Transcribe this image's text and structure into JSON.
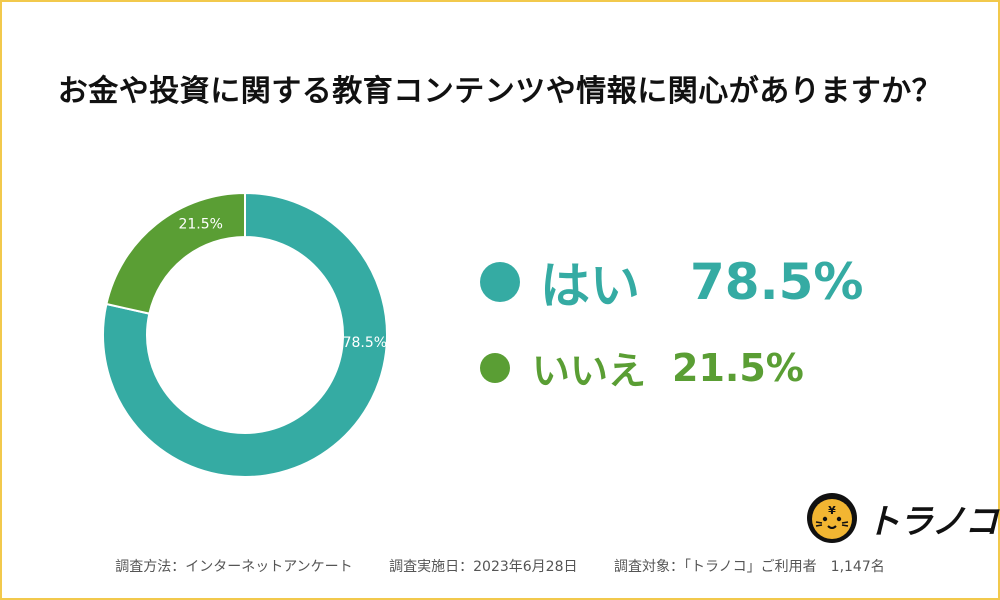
{
  "title": "お金や投資に関する教育コンテンツや情報に関心がありますか？",
  "chart_data": {
    "type": "pie",
    "title": "お金や投資に関する教育コンテンツや情報に関心がありますか？",
    "categories": [
      "はい",
      "いいえ"
    ],
    "values": [
      78.5,
      21.5
    ],
    "value_labels": [
      "78.5%",
      "21.5%"
    ],
    "colors": [
      "#35aba3",
      "#5a9e34"
    ],
    "donut": true,
    "legend_placement": "right"
  },
  "legend": [
    {
      "label": "はい",
      "value": "78.5%",
      "color": "#35aba3"
    },
    {
      "label": "いいえ",
      "value": "21.5%",
      "color": "#5a9e34"
    }
  ],
  "footer": {
    "method": "調査方法：インターネットアンケート",
    "date": "調査実施日：2023年6月28日",
    "target": "調査対象：「トラノコ」ご利用者　1,147名"
  },
  "logo": {
    "text": "トラノコ",
    "icon": "tiger-logo-icon",
    "color": "#f2b632"
  }
}
